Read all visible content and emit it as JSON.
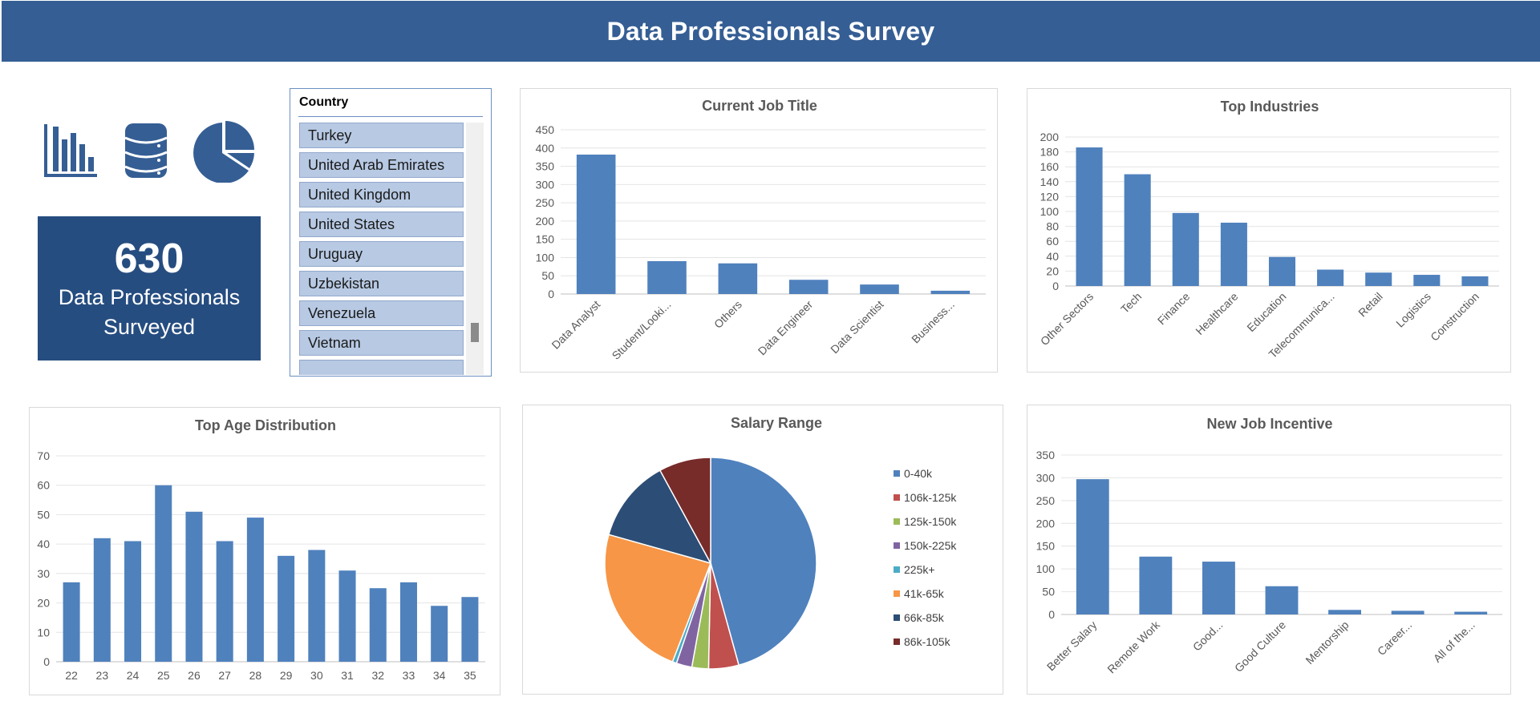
{
  "header": {
    "title": "Data Professionals Survey"
  },
  "icons": [
    "bar-chart-icon",
    "database-icon",
    "pie-chart-icon"
  ],
  "colors": {
    "header": "#355e94",
    "kpi": "#264d80",
    "bar": "#4f81bd"
  },
  "kpi": {
    "value": "630",
    "label": "Data Professionals Surveyed"
  },
  "slicer": {
    "title": "Country",
    "items": [
      "Turkey",
      "United Arab Emirates",
      "United Kingdom",
      "United States",
      "Uruguay",
      "Uzbekistan",
      "Venezuela",
      "Vietnam",
      ""
    ]
  },
  "chart_data": [
    {
      "id": "job",
      "type": "bar",
      "title": "Current Job Title",
      "categories": [
        "Data Analyst",
        "Student/Looki...",
        "Others",
        "Data Engineer",
        "Data Scientist",
        "Business..."
      ],
      "values": [
        382,
        90,
        84,
        39,
        26,
        9
      ],
      "ylim": [
        0,
        450
      ],
      "yticks": [
        0,
        50,
        100,
        150,
        200,
        250,
        300,
        350,
        400,
        450
      ],
      "grid": true,
      "xlabel": "",
      "ylabel": ""
    },
    {
      "id": "industry",
      "type": "bar",
      "title": "Top Industries",
      "categories": [
        "Other Sectors",
        "Tech",
        "Finance",
        "Healthcare",
        "Education",
        "Telecommunica...",
        "Retail",
        "Logistics",
        "Construction"
      ],
      "values": [
        186,
        150,
        98,
        85,
        39,
        22,
        18,
        15,
        13
      ],
      "ylim": [
        0,
        200
      ],
      "yticks": [
        0,
        20,
        40,
        60,
        80,
        100,
        120,
        140,
        160,
        180,
        200
      ],
      "grid": true,
      "xlabel": "",
      "ylabel": ""
    },
    {
      "id": "age",
      "type": "bar",
      "title": "Top Age Distribution",
      "categories": [
        "22",
        "23",
        "24",
        "25",
        "26",
        "27",
        "28",
        "29",
        "30",
        "31",
        "32",
        "33",
        "34",
        "35"
      ],
      "values": [
        27,
        42,
        41,
        60,
        51,
        41,
        49,
        36,
        38,
        31,
        25,
        27,
        19,
        22
      ],
      "ylim": [
        0,
        70
      ],
      "yticks": [
        0,
        10,
        20,
        30,
        40,
        50,
        60,
        70
      ],
      "grid": true,
      "xlabel": "",
      "ylabel": ""
    },
    {
      "id": "salary",
      "type": "pie",
      "title": "Salary Range",
      "legend": "right",
      "slices": [
        {
          "name": "0-40k",
          "value": 288,
          "color": "#4f81bd"
        },
        {
          "name": "106k-125k",
          "value": 29,
          "color": "#c0504d"
        },
        {
          "name": "125k-150k",
          "value": 16,
          "color": "#9bbb59"
        },
        {
          "name": "150k-225k",
          "value": 15,
          "color": "#8064a2"
        },
        {
          "name": "225k+",
          "value": 4,
          "color": "#4bacc6"
        },
        {
          "name": "41k-65k",
          "value": 148,
          "color": "#f79646"
        },
        {
          "name": "66k-85k",
          "value": 80,
          "color": "#2c4d75"
        },
        {
          "name": "86k-105k",
          "value": 50,
          "color": "#772c2a"
        }
      ]
    },
    {
      "id": "incentive",
      "type": "bar",
      "title": "New Job Incentive",
      "categories": [
        "Better Salary",
        "Remote Work",
        "Good...",
        "Good Culture",
        "Mentorship",
        "Career...",
        "All of the..."
      ],
      "values": [
        297,
        127,
        116,
        62,
        10,
        8,
        6
      ],
      "ylim": [
        0,
        350
      ],
      "yticks": [
        0,
        50,
        100,
        150,
        200,
        250,
        300,
        350
      ],
      "grid": true,
      "xlabel": "",
      "ylabel": ""
    }
  ]
}
